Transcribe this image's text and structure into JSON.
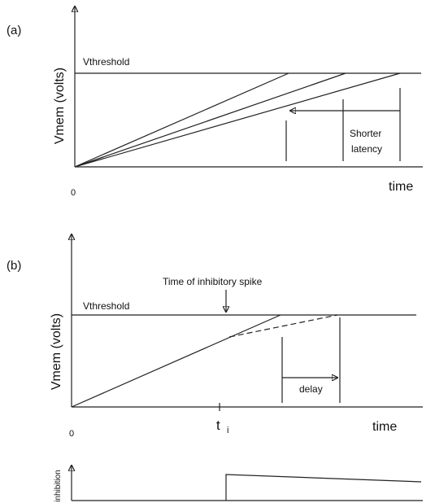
{
  "panel_a": {
    "label": "(a)",
    "threshold_label": "Vthreshold",
    "y_axis_label": "Vmem (volts)",
    "annotation": [
      "Shorter",
      "latency"
    ],
    "origin_label": "0",
    "x_axis_label": "time"
  },
  "panel_b": {
    "label": "(b)",
    "threshold_label": "Vthreshold",
    "y_axis_label": "Vmem (volts)",
    "annotation_top": "Time of inhibitory spike",
    "annotation": "delay",
    "origin_label": "0",
    "tick_label": "t",
    "tick_subscript": "i",
    "x_axis_label": "time"
  },
  "panel_c": {
    "y_axis_label": "inhibition"
  }
}
